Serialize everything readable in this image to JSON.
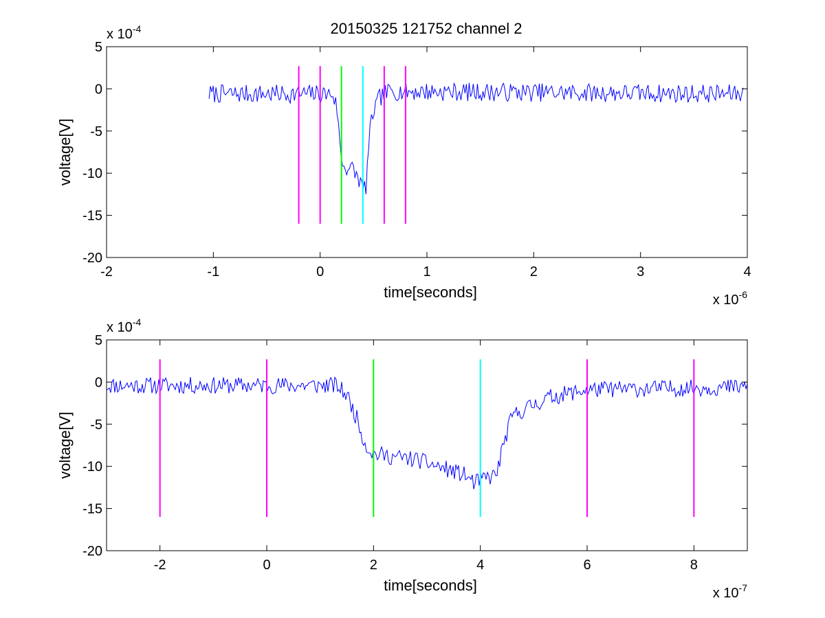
{
  "figure": {
    "title": "20150325 121752 channel 2"
  },
  "chart_data": [
    {
      "type": "line",
      "title": "20150325 121752 channel 2",
      "xlabel": "time[seconds]",
      "ylabel": "voltage[V]",
      "x_multiplier": "x 10",
      "x_exponent": "-6",
      "y_multiplier": "x 10",
      "y_exponent": "-4",
      "xlim": [
        -2,
        4
      ],
      "ylim": [
        -20,
        5
      ],
      "xticks": [
        -2,
        -1,
        0,
        1,
        2,
        3,
        4
      ],
      "yticks": [
        -20,
        -15,
        -10,
        -5,
        0,
        5
      ],
      "xtick_labels": [
        "-2",
        "-1",
        "0",
        "1",
        "2",
        "3",
        "4"
      ],
      "ytick_labels": [
        "-20",
        "-15",
        "-10",
        "-5",
        "0",
        "5"
      ],
      "grid": false,
      "signal": {
        "color": "#0000ff",
        "x_range": [
          -1.04,
          3.96
        ],
        "baseline": -0.6,
        "noise_amplitude": 1.1,
        "seed": 7,
        "keypoints": [
          [
            -1.04,
            -0.6
          ],
          [
            0.12,
            -0.6
          ],
          [
            0.16,
            -2.5
          ],
          [
            0.19,
            -7.5
          ],
          [
            0.22,
            -9.2
          ],
          [
            0.3,
            -9.5
          ],
          [
            0.37,
            -10.8
          ],
          [
            0.4,
            -12.0
          ],
          [
            0.43,
            -11.5
          ],
          [
            0.46,
            -6.0
          ],
          [
            0.49,
            -3.0
          ],
          [
            0.56,
            -1.0
          ],
          [
            0.65,
            -0.3
          ],
          [
            3.96,
            -0.6
          ]
        ]
      },
      "vlines": [
        {
          "x": -0.2,
          "color": "#ff00ff",
          "y_from": -16,
          "y_to": 2.7
        },
        {
          "x": 0.0,
          "color": "#ff00ff",
          "y_from": -16,
          "y_to": 2.7
        },
        {
          "x": 0.2,
          "color": "#00ff00",
          "y_from": -16,
          "y_to": 2.7
        },
        {
          "x": 0.4,
          "color": "#00ffff",
          "y_from": -16,
          "y_to": 2.7
        },
        {
          "x": 0.6,
          "color": "#ff00ff",
          "y_from": -16,
          "y_to": 2.7
        },
        {
          "x": 0.8,
          "color": "#ff00ff",
          "y_from": -16,
          "y_to": 2.7
        }
      ]
    },
    {
      "type": "line",
      "title": "",
      "xlabel": "time[seconds]",
      "ylabel": "voltage[V]",
      "x_multiplier": "x 10",
      "x_exponent": "-7",
      "y_multiplier": "x 10",
      "y_exponent": "-4",
      "xlim": [
        -3,
        9
      ],
      "ylim": [
        -20,
        5
      ],
      "xticks": [
        -2,
        0,
        2,
        4,
        6,
        8
      ],
      "yticks": [
        -20,
        -15,
        -10,
        -5,
        0,
        5
      ],
      "xtick_labels": [
        "-2",
        "0",
        "2",
        "4",
        "6",
        "8"
      ],
      "ytick_labels": [
        "-20",
        "-15",
        "-10",
        "-5",
        "0",
        "5"
      ],
      "grid": false,
      "signal": {
        "color": "#0000ff",
        "x_range": [
          -3,
          9
        ],
        "baseline": -0.6,
        "noise_amplitude": 1.0,
        "seed": 11,
        "keypoints": [
          [
            -3.0,
            -0.4
          ],
          [
            1.3,
            -0.4
          ],
          [
            1.5,
            -1.5
          ],
          [
            1.7,
            -4.5
          ],
          [
            1.85,
            -7.5
          ],
          [
            2.0,
            -8.5
          ],
          [
            2.3,
            -8.8
          ],
          [
            2.8,
            -9.2
          ],
          [
            3.3,
            -10.2
          ],
          [
            3.7,
            -11.0
          ],
          [
            3.9,
            -12.0
          ],
          [
            4.05,
            -11.5
          ],
          [
            4.3,
            -11.0
          ],
          [
            4.45,
            -7.0
          ],
          [
            4.6,
            -4.0
          ],
          [
            4.9,
            -3.0
          ],
          [
            5.3,
            -1.8
          ],
          [
            6.0,
            -0.9
          ],
          [
            9.0,
            -0.6
          ]
        ]
      },
      "vlines": [
        {
          "x": -2,
          "color": "#ff00ff",
          "y_from": -16,
          "y_to": 2.7
        },
        {
          "x": 0,
          "color": "#ff00ff",
          "y_from": -16,
          "y_to": 2.7
        },
        {
          "x": 2,
          "color": "#00ff00",
          "y_from": -16,
          "y_to": 2.7
        },
        {
          "x": 4,
          "color": "#00ffff",
          "y_from": -16,
          "y_to": 2.7
        },
        {
          "x": 6,
          "color": "#ff00ff",
          "y_from": -16,
          "y_to": 2.7
        },
        {
          "x": 8,
          "color": "#ff00ff",
          "y_from": -16,
          "y_to": 2.7
        }
      ]
    }
  ]
}
